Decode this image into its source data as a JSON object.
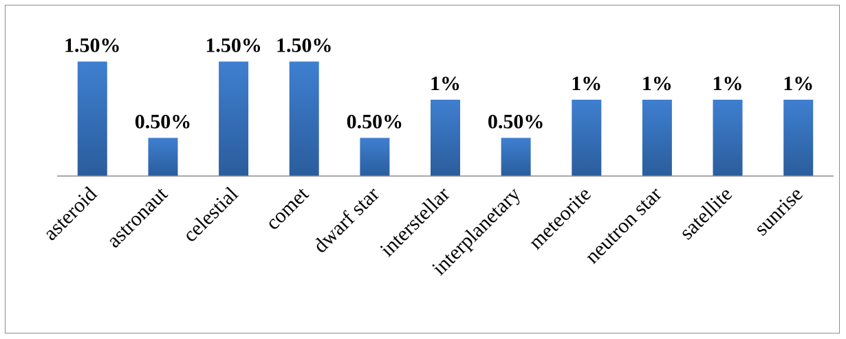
{
  "chart_data": {
    "type": "bar",
    "title": "",
    "xlabel": "",
    "ylabel": "",
    "categories": [
      "asteroid",
      "astronaut",
      "celestial",
      "comet",
      "dwarf star",
      "interstellar",
      "interplanetary",
      "meteorite",
      "neutron star",
      "satellite",
      "sunrise"
    ],
    "values": [
      1.5,
      0.5,
      1.5,
      1.5,
      0.5,
      1.0,
      0.5,
      1.0,
      1.0,
      1.0,
      1.0
    ],
    "value_labels": [
      "1.50%",
      "0.50%",
      "1.50%",
      "1.50%",
      "0.50%",
      "1%",
      "0.50%",
      "1%",
      "1%",
      "1%",
      "1%"
    ],
    "unit": "%",
    "ylim": [
      0,
      1.5
    ],
    "grid": false,
    "legend": "none",
    "category_label_rotation": "45 degrees counter-clockwise",
    "colors": {
      "bar_top": "#3f7fd0",
      "bar_bottom": "#2a5d9c",
      "axis": "#8c8c8c",
      "frame": "#8c8c8c"
    }
  }
}
